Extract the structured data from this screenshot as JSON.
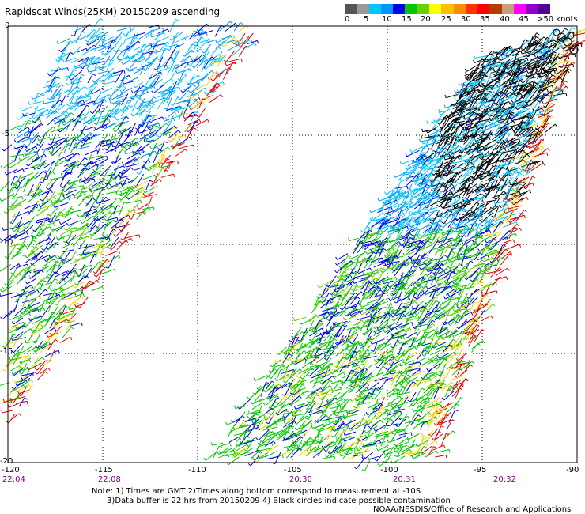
{
  "title": "Rapidscat Winds(25KM) 20150209 ascending",
  "legend": {
    "colors": [
      "#555555",
      "#999999",
      "#00c8ff",
      "#0096ff",
      "#0000e6",
      "#00c800",
      "#64d200",
      "#ffff00",
      "#ffbe00",
      "#ff8c00",
      "#ff3200",
      "#ff0000",
      "#b43c00",
      "#c8a078",
      "#ff00ff",
      "#8c00c8",
      "#500096"
    ],
    "labels": [
      "0",
      "5",
      "10",
      "15",
      "20",
      "25",
      "30",
      "35",
      "40",
      "45",
      ">50 knots"
    ]
  },
  "map": {
    "lat_labels": [
      "0",
      "-5",
      "-10",
      "-15",
      "-20"
    ],
    "lon_labels": [
      "-120",
      "-115",
      "-110",
      "-105",
      "-100",
      "-95",
      "-90"
    ],
    "time_labels": [
      "22:04",
      "22:08",
      "20:30",
      "20:31",
      "20:32"
    ],
    "lat_range": [
      -20,
      0
    ],
    "lon_range": [
      -120,
      -90
    ],
    "grid": "dotted"
  },
  "note_lines": [
    "Note: 1) Times are GMT 2)Times along bottom correspond to measurement at -10S",
    "      3)Data buffer is 22 hrs from 20150209 4) Black circles indicate possible contamination"
  ],
  "credit": "NOAA/NESDIS/Office of Research and Applications"
}
